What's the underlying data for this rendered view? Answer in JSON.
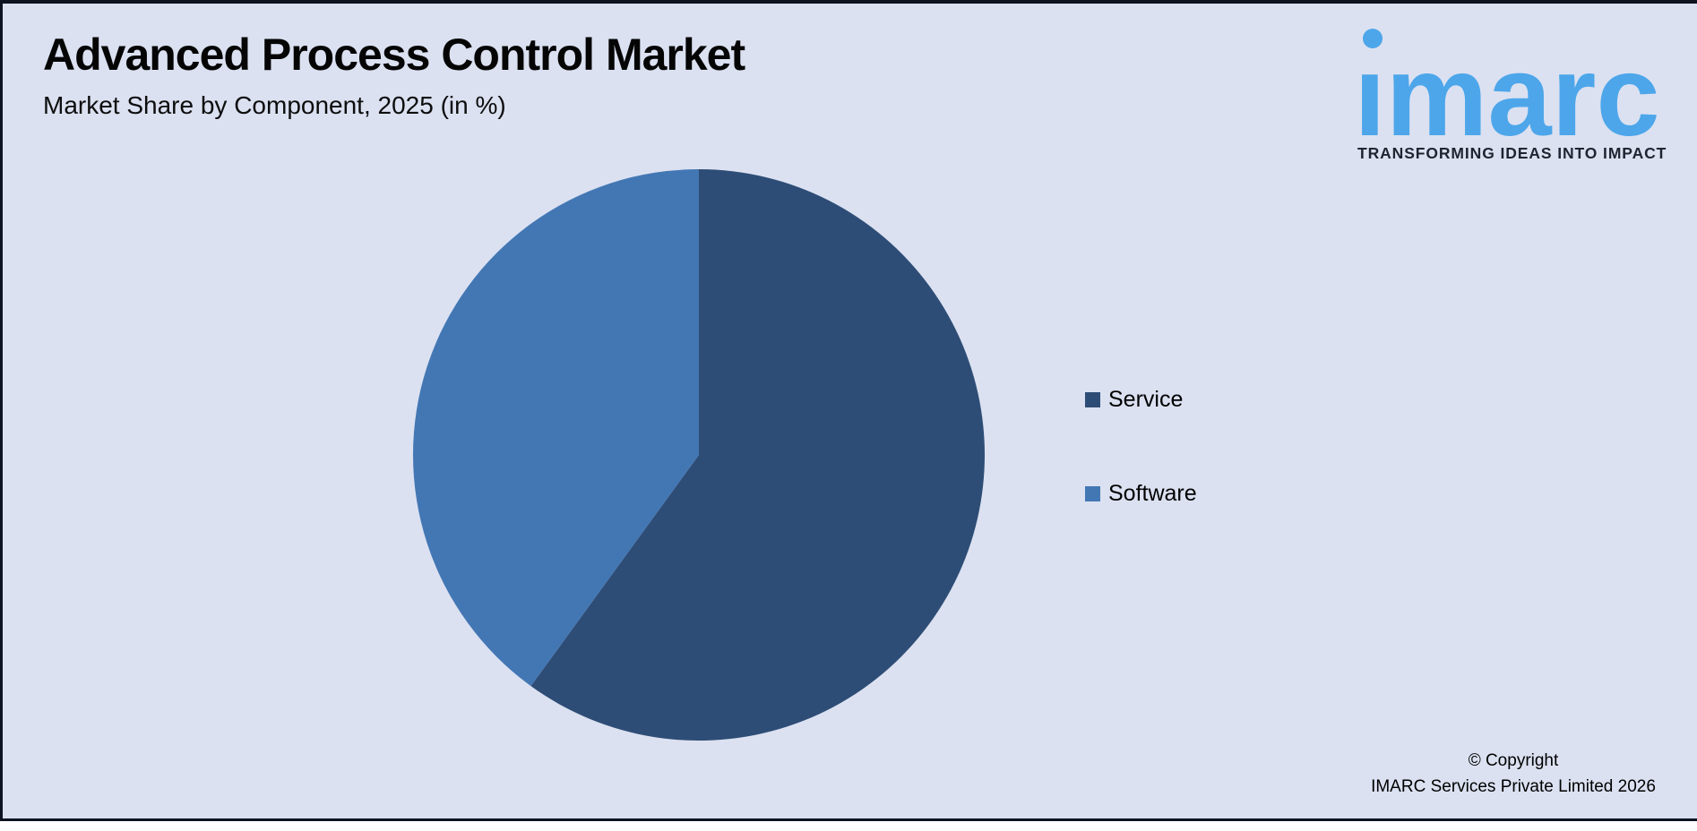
{
  "page": {
    "canvas_background": "#ffffff",
    "card_background": "#dbe1f1",
    "frame_border_color": "#0e1322"
  },
  "header": {
    "title": "Advanced Process Control Market",
    "subtitle": "Market Share by Component, 2025 (in %)"
  },
  "logo": {
    "wordmark": "imarc",
    "tagline": "TRANSFORMING IDEAS INTO IMPACT",
    "brand_color": "#4da6ea",
    "tagline_color": "#1f2430"
  },
  "chart_data": {
    "type": "pie",
    "title": "Advanced Process Control Market",
    "subtitle": "Market Share by Component, 2025 (in %)",
    "categories": [
      "Service",
      "Software"
    ],
    "values": [
      60,
      40
    ],
    "unit": "%",
    "colors": [
      "#2e4d76",
      "#4377b4"
    ],
    "start_angle_deg": 0,
    "direction": "clockwise",
    "legend_position": "right",
    "data_labels_shown": false
  },
  "legend": {
    "items": [
      {
        "label": "Service",
        "color": "#2e4d76"
      },
      {
        "label": "Software",
        "color": "#4377b4"
      }
    ]
  },
  "footer": {
    "copyright_line1": "© Copyright",
    "copyright_line2": "IMARC Services Private Limited 2026"
  }
}
